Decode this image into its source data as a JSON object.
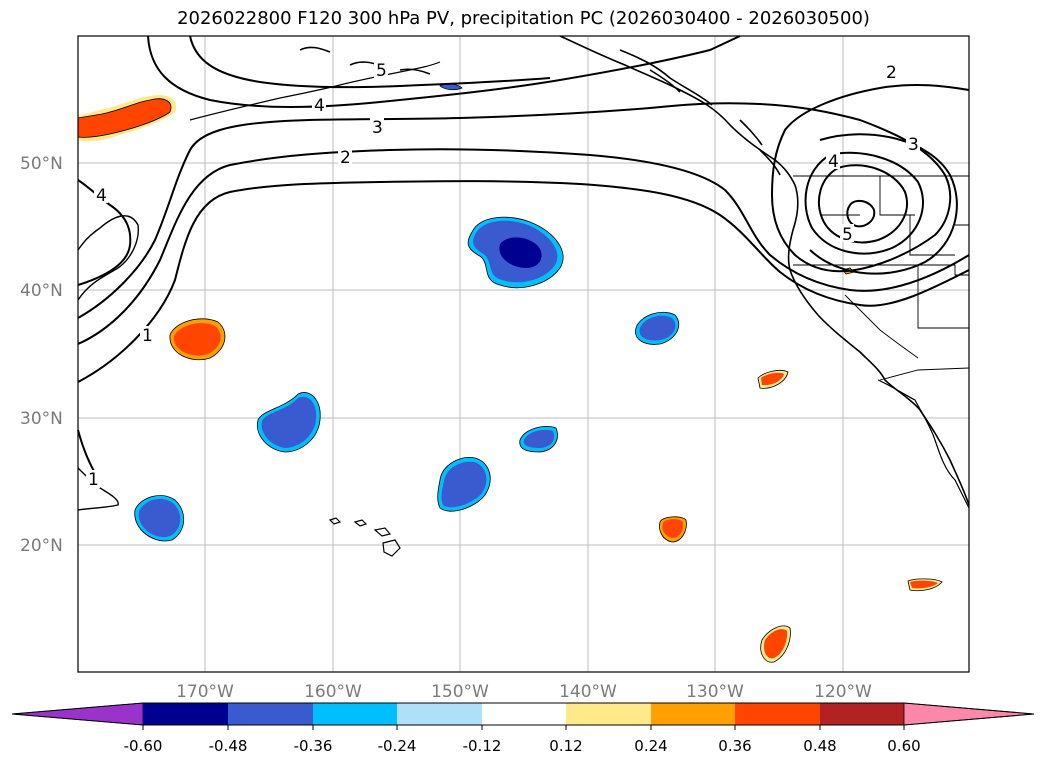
{
  "title": "2026022800 F120 300 hPa PV, precipitation PC (2026030400 - 2026030500)",
  "map": {
    "lat_labels": [
      "50°N",
      "40°N",
      "30°N",
      "20°N"
    ],
    "lon_labels": [
      "170°W",
      "160°W",
      "150°W",
      "140°W",
      "130°W",
      "120°W"
    ],
    "contour_labels": [
      "1",
      "1",
      "2",
      "2",
      "3",
      "3",
      "4",
      "4",
      "4",
      "5",
      "5"
    ]
  },
  "colorbar": {
    "colors": [
      "#9933CC",
      "#000090",
      "#3A5BCF",
      "#00BFFF",
      "#AEE1F8",
      "#FFFFFF",
      "#FFE98A",
      "#FFA000",
      "#FF4500",
      "#B22222",
      "#FF88AA"
    ],
    "ticks": [
      "-0.60",
      "-0.48",
      "-0.36",
      "-0.24",
      "-0.12",
      "0.12",
      "0.24",
      "0.36",
      "0.48",
      "0.60"
    ]
  },
  "colors": {
    "dark_blue": "#000090",
    "blue": "#3A5BCF",
    "cyan": "#00BFFF",
    "light_blue": "#AEE1F8",
    "yellow": "#FFE98A",
    "orange": "#FFA000",
    "red_orange": "#FF4500"
  }
}
